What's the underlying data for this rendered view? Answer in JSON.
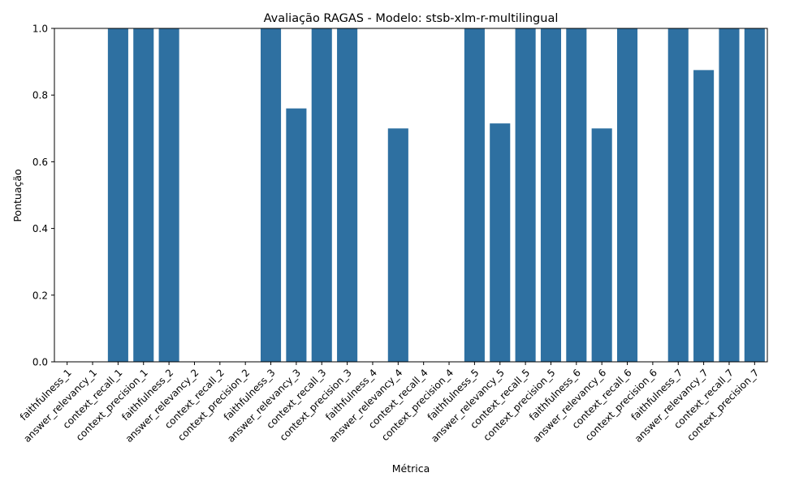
{
  "chart_data": {
    "type": "bar",
    "title": "Avaliação RAGAS - Modelo: stsb-xlm-r-multilingual",
    "xlabel": "Métrica",
    "ylabel": "Pontuação",
    "ylim": [
      0,
      1.0
    ],
    "yticks": [
      "0.0",
      "0.2",
      "0.4",
      "0.6",
      "0.8",
      "1.0"
    ],
    "grid": false,
    "bar_color": "#2e70a1",
    "categories": [
      "faithfulness_1",
      "answer_relevancy_1",
      "context_recall_1",
      "context_precision_1",
      "faithfulness_2",
      "answer_relevancy_2",
      "context_recall_2",
      "context_precision_2",
      "faithfulness_3",
      "answer_relevancy_3",
      "context_recall_3",
      "context_precision_3",
      "faithfulness_4",
      "answer_relevancy_4",
      "context_recall_4",
      "context_precision_4",
      "faithfulness_5",
      "answer_relevancy_5",
      "context_recall_5",
      "context_precision_5",
      "faithfulness_6",
      "answer_relevancy_6",
      "context_recall_6",
      "context_precision_6",
      "faithfulness_7",
      "answer_relevancy_7",
      "context_recall_7",
      "context_precision_7"
    ],
    "values": [
      0,
      0,
      1.0,
      1.0,
      1.0,
      0,
      0,
      0,
      1.0,
      0.76,
      1.0,
      1.0,
      0,
      0.7,
      0,
      0,
      1.0,
      0.715,
      1.0,
      1.0,
      1.0,
      0.7,
      1.0,
      0,
      1.0,
      0.875,
      1.0,
      1.0
    ]
  }
}
